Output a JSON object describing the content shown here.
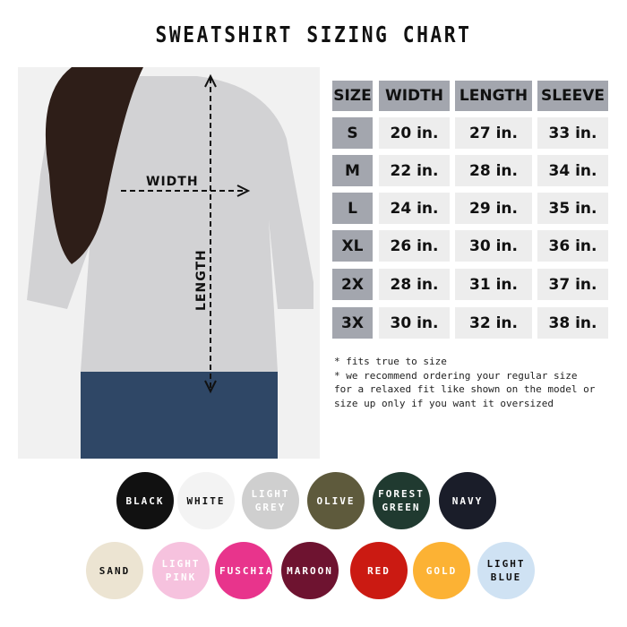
{
  "title": "SWEATSHIRT SIZING CHART",
  "photo": {
    "width_label": "WIDTH",
    "length_label": "LENGTH"
  },
  "table": {
    "headers": [
      "SIZE",
      "WIDTH",
      "LENGTH",
      "SLEEVE"
    ],
    "rows": [
      [
        "S",
        "20 in.",
        "27 in.",
        "33 in."
      ],
      [
        "M",
        "22 in.",
        "28 in.",
        "34 in."
      ],
      [
        "L",
        "24 in.",
        "29 in.",
        "35 in."
      ],
      [
        "XL",
        "26 in.",
        "30 in.",
        "36 in."
      ],
      [
        "2X",
        "28 in.",
        "31 in.",
        "37 in."
      ],
      [
        "3X",
        "30 in.",
        "32 in.",
        "38 in."
      ]
    ]
  },
  "notes": [
    "* fits true to size",
    "* we recommend ordering your regular size",
    "for a relaxed fit like shown on the model or",
    "size up only if you want it oversized"
  ],
  "colors": [
    {
      "name": "BLACK",
      "bg": "#111111",
      "fg": "#ffffff"
    },
    {
      "name": "WHITE",
      "bg": "#f3f3f3",
      "fg": "#111111"
    },
    {
      "name": "LIGHT GREY",
      "bg": "#cfcfcf",
      "fg": "#ffffff"
    },
    {
      "name": "OLIVE",
      "bg": "#5e5a3c",
      "fg": "#ffffff"
    },
    {
      "name": "FOREST GREEN",
      "bg": "#203a30",
      "fg": "#ffffff"
    },
    {
      "name": "NAVY",
      "bg": "#1a1d29",
      "fg": "#ffffff"
    },
    {
      "name": "SAND",
      "bg": "#ece4d2",
      "fg": "#111111"
    },
    {
      "name": "LIGHT PINK",
      "bg": "#f6c2de",
      "fg": "#ffffff"
    },
    {
      "name": "FUSCHIA",
      "bg": "#e8348c",
      "fg": "#ffffff"
    },
    {
      "name": "MAROON",
      "bg": "#6e1330",
      "fg": "#ffffff"
    },
    {
      "name": "RED",
      "bg": "#cb1a12",
      "fg": "#ffffff"
    },
    {
      "name": "GOLD",
      "bg": "#fcb234",
      "fg": "#ffffff"
    },
    {
      "name": "LIGHT BLUE",
      "bg": "#cfe2f3",
      "fg": "#111111"
    }
  ]
}
